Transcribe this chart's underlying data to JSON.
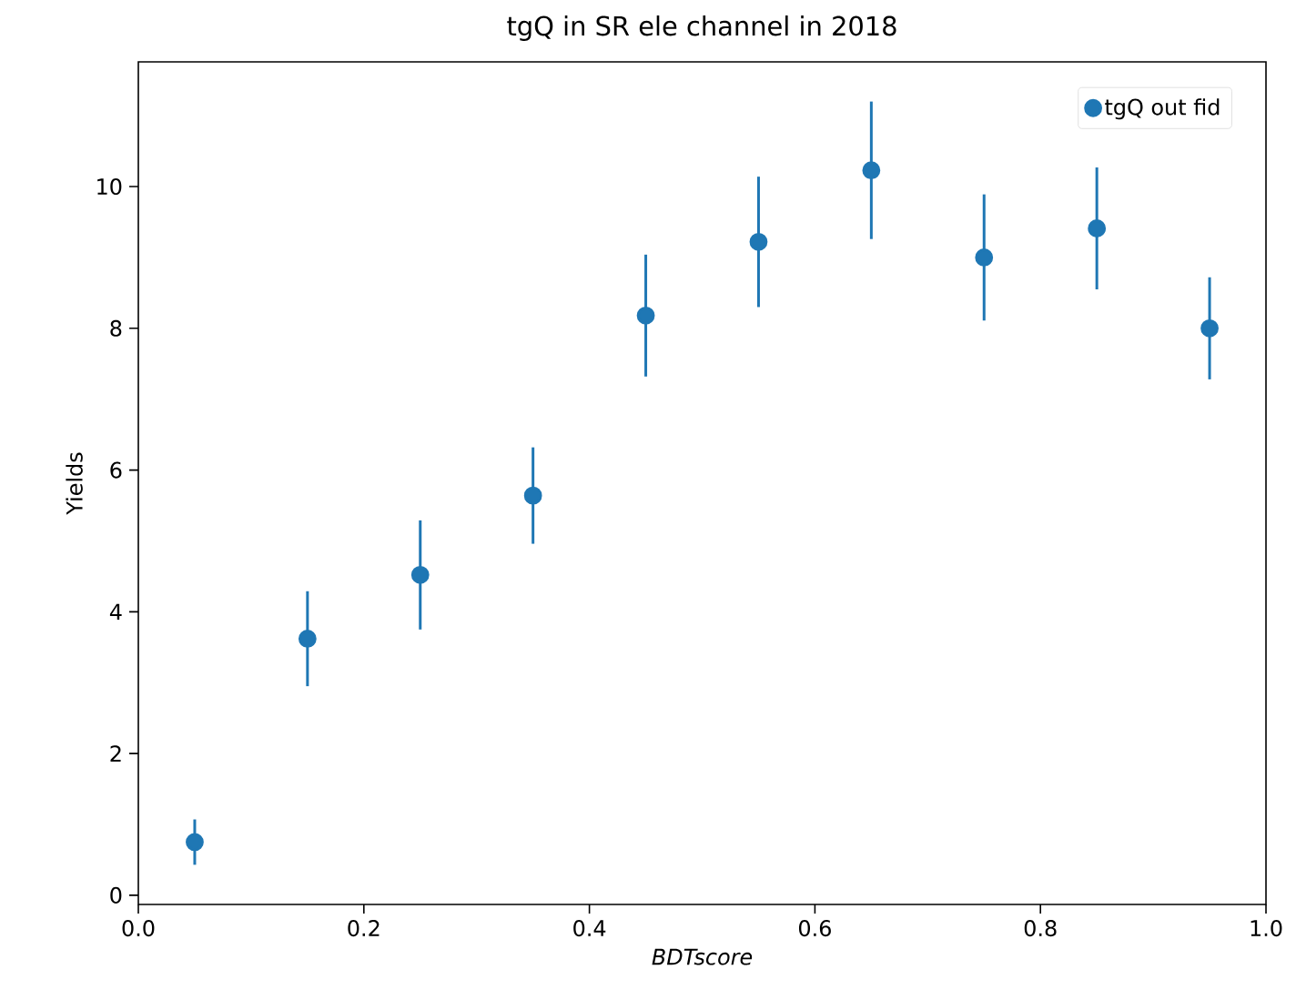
{
  "chart_data": {
    "type": "scatter",
    "title": "tgQ in SR ele channel in 2018",
    "xlabel": "BDTscore",
    "ylabel": "Yields",
    "x": [
      0.05,
      0.15,
      0.25,
      0.35,
      0.45,
      0.55,
      0.65,
      0.75,
      0.85,
      0.95
    ],
    "series": [
      {
        "name": "tgQ out fid",
        "color": "#1f77b4",
        "values": [
          0.75,
          3.62,
          4.52,
          5.64,
          8.18,
          9.22,
          10.23,
          9.0,
          9.41,
          8.0
        ],
        "errors": [
          0.32,
          0.67,
          0.77,
          0.68,
          0.86,
          0.92,
          0.97,
          0.89,
          0.86,
          0.72
        ]
      }
    ],
    "xlim": [
      0.0,
      1.0
    ],
    "xticks": [
      {
        "value": 0,
        "label": "0.0"
      },
      0.2,
      0.4,
      0.6,
      0.8,
      {
        "value": 1,
        "label": "1.0"
      }
    ],
    "ylim": [
      -0.13,
      11.76
    ],
    "yticks": [
      0,
      2,
      4,
      6,
      8,
      10
    ],
    "marker": "circle",
    "legend": "top right",
    "grid": false
  }
}
